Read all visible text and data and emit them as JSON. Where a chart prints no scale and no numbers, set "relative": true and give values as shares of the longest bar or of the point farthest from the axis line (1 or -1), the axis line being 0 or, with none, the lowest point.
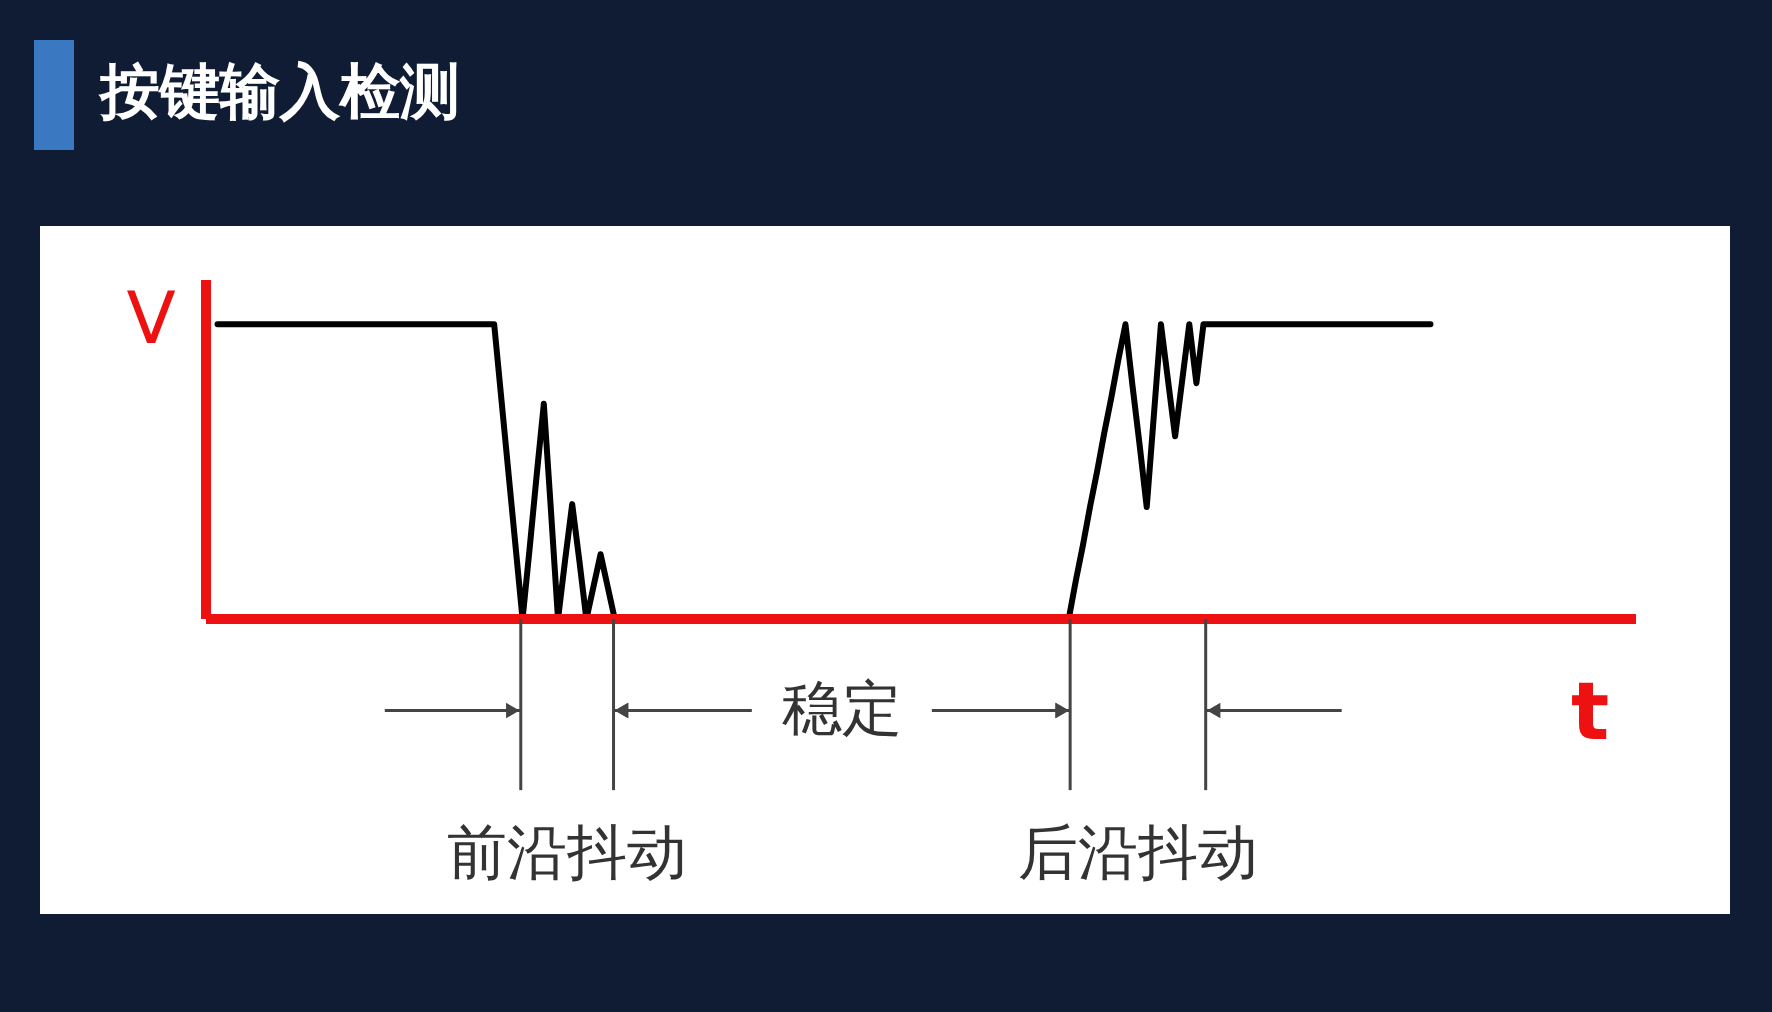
{
  "chart_data": {
    "type": "line",
    "title": "按键输入检测",
    "xlabel": "t",
    "ylabel": "V",
    "relative": true,
    "categories": [
      null,
      null,
      null,
      null,
      null,
      null,
      null,
      null,
      null,
      null,
      null,
      null,
      null,
      null,
      null,
      null,
      null,
      null,
      null,
      null,
      null,
      null,
      null,
      null,
      null,
      null,
      null,
      null,
      null,
      null,
      null,
      null,
      null,
      null,
      null,
      null,
      null,
      null,
      null,
      null,
      null,
      null,
      null,
      null,
      null,
      null,
      null,
      null,
      null,
      null,
      null,
      null,
      null,
      null,
      null,
      null,
      null,
      null,
      null,
      null,
      null,
      null,
      null,
      null,
      null,
      null,
      null,
      null,
      null,
      null,
      null,
      null,
      null,
      null,
      null,
      null,
      null,
      null,
      null,
      null,
      null,
      null,
      null,
      null,
      null,
      null,
      null,
      null,
      null,
      null,
      null,
      null,
      null,
      null,
      null,
      null,
      null,
      null,
      null,
      null,
      null,
      null,
      null,
      null,
      null,
      null,
      null,
      null,
      null,
      null,
      null,
      null,
      null,
      null,
      null,
      null,
      null,
      null,
      null,
      null,
      null,
      null,
      null,
      null,
      null,
      null,
      null,
      null,
      null,
      null,
      null,
      null,
      null,
      null,
      null,
      null,
      null,
      null,
      null,
      null,
      null,
      null,
      null,
      null,
      null,
      null,
      null,
      null,
      null,
      null,
      null,
      null,
      null,
      null,
      null,
      null,
      null,
      null,
      null,
      null,
      null,
      null,
      null,
      null,
      null,
      null,
      null,
      null,
      null,
      null,
      null,
      null
    ],
    "series": [
      {
        "color": "#000000",
        "values": [
          1,
          1,
          1,
          1,
          1,
          1,
          1,
          1,
          1,
          1,
          1,
          1,
          1,
          1,
          1,
          1,
          1,
          1,
          1,
          1,
          1,
          1,
          1,
          1,
          1,
          1,
          1,
          1,
          1,
          1,
          1,
          1,
          1,
          1,
          1,
          1,
          1,
          1,
          1,
          1,
          0.75,
          0.5,
          0.25,
          0,
          0.24,
          0.49,
          0.73,
          0.37,
          0,
          0.2,
          0.39,
          0.2,
          0,
          0.11,
          0.22,
          0.11,
          0,
          0,
          0,
          0,
          0,
          0,
          0,
          0,
          0,
          0,
          0,
          0,
          0,
          0,
          0,
          0,
          0,
          0,
          0,
          0,
          0,
          0,
          0,
          0,
          0,
          0,
          0,
          0,
          0,
          0,
          0,
          0,
          0,
          0,
          0,
          0,
          0,
          0,
          0,
          0,
          0,
          0,
          0,
          0,
          0,
          0,
          0,
          0,
          0,
          0,
          0,
          0,
          0,
          0,
          0,
          0,
          0,
          0,
          0,
          0,
          0,
          0,
          0,
          0,
          0,
          0.13,
          0.25,
          0.38,
          0.5,
          0.63,
          0.75,
          0.88,
          1,
          0.79,
          0.59,
          0.38,
          0.69,
          1,
          0.81,
          0.62,
          0.81,
          1,
          0.8,
          1,
          1,
          1,
          1,
          1,
          1,
          1,
          1,
          1,
          1,
          1,
          1,
          1,
          1,
          1,
          1,
          1,
          1,
          1,
          1,
          1,
          1,
          1,
          1,
          1,
          1,
          1,
          1,
          1,
          1,
          1,
          1,
          1
        ]
      }
    ],
    "annotations": [
      "前沿抖动",
      "稳定",
      "后沿抖动"
    ]
  }
}
